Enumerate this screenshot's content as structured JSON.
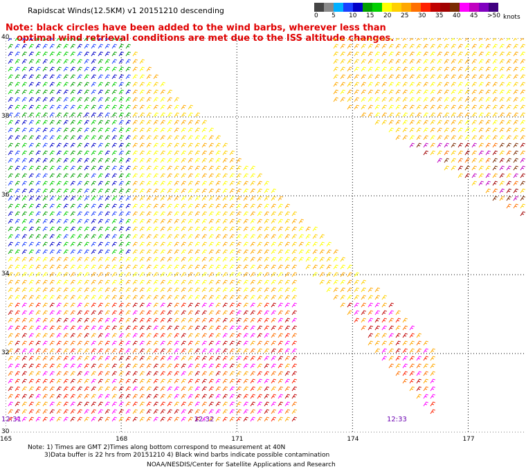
{
  "title": "Rapidscat Winds(12.5KM) v1 20151210 descending",
  "note_line1": "Note: black circles have been added to the wind barbs, wherever less than",
  "note_line2": "optimal wind retrieval conditions are met due to the ISS altitude changes.",
  "legend": {
    "colors": [
      "#444444",
      "#8a8a8a",
      "#00b0ff",
      "#1a40ff",
      "#0000c8",
      "#00a000",
      "#00d000",
      "#ffff00",
      "#ffd000",
      "#ffa800",
      "#ff7000",
      "#ff2000",
      "#c00000",
      "#a00000",
      "#7a2a00",
      "#ff00ff",
      "#c000c0",
      "#8000c0",
      "#400080"
    ],
    "labels": [
      "0",
      "5",
      "10",
      "15",
      "20",
      "25",
      "30",
      "35",
      "40",
      "45",
      ">50"
    ],
    "unit": "knots"
  },
  "lat_labels": [
    "40",
    "38",
    "36",
    "34",
    "32",
    "30"
  ],
  "lon_labels": [
    "165",
    "168",
    "171",
    "174",
    "177"
  ],
  "time_labels": [
    "12:31",
    "12:32",
    "12:33"
  ],
  "footnote1": "Note: 1) Times are GMT 2)Times along bottom correspond to measurement at 40N",
  "footnote2": "3)Data buffer is 22 hrs from 20151210 4) Black wind barbs indicate possible contamination",
  "credit": "NOAA/NESDIS/Center for Satellite Applications and Research",
  "map": {
    "lat_range": [
      30,
      40
    ],
    "lon_range": [
      165,
      178.5
    ],
    "grid": "dotted",
    "swath_color_zones": [
      {
        "region": "west",
        "colors": [
          "#0000c8",
          "#1a40ff",
          "#00a000",
          "#00d000"
        ]
      },
      {
        "region": "center",
        "colors": [
          "#ffff00",
          "#ffd000",
          "#ffa800"
        ]
      },
      {
        "region": "south",
        "colors": [
          "#ffa800",
          "#ff7000",
          "#ff2000",
          "#c00000",
          "#ff00ff"
        ]
      },
      {
        "region": "east",
        "colors": [
          "#ffd000",
          "#ffa800",
          "#ff7000",
          "#a00000",
          "#7a2a00",
          "#c000c0"
        ]
      }
    ]
  }
}
